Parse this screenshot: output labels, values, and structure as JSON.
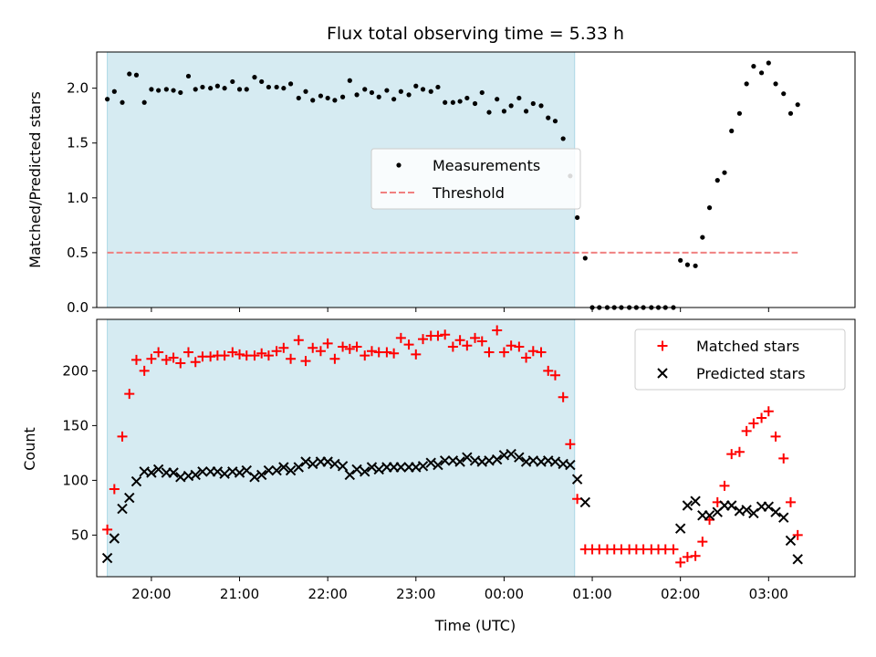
{
  "chart_data": [
    {
      "type": "scatter",
      "title": "Flux total observing time = 5.33 h",
      "ylabel": "Matched/Predicted stars",
      "xlabel": "",
      "xlim": [
        19.38,
        3.98
      ],
      "ylim": [
        0,
        2.33
      ],
      "xticks": [
        "20:00",
        "21:00",
        "22:00",
        "23:00",
        "00:00",
        "01:00",
        "02:00",
        "03:00"
      ],
      "yticks": [
        0.0,
        0.5,
        1.0,
        1.5,
        2.0
      ],
      "ytick_labels": [
        "0.0",
        "0.5",
        "1.0",
        "1.5",
        "2.0"
      ],
      "highlight_span": [
        19.5,
        0.8
      ],
      "highlight_color": "#add8e6",
      "legend": {
        "placement": "center-right",
        "entries": [
          "Measurements",
          "Threshold"
        ]
      },
      "threshold": {
        "name": "Threshold",
        "value": 0.5,
        "x_range": [
          19.5,
          3.33
        ],
        "color": "#f08080"
      },
      "series": [
        {
          "name": "Measurements",
          "marker": "dot",
          "color": "#000000",
          "x": [
            19.5,
            19.58,
            19.67,
            19.75,
            19.83,
            19.92,
            20.0,
            20.08,
            20.17,
            20.25,
            20.33,
            20.42,
            20.5,
            20.58,
            20.67,
            20.75,
            20.83,
            20.92,
            21.0,
            21.08,
            21.17,
            21.25,
            21.33,
            21.42,
            21.5,
            21.58,
            21.67,
            21.75,
            21.83,
            21.92,
            22.0,
            22.08,
            22.17,
            22.25,
            22.33,
            22.42,
            22.5,
            22.58,
            22.67,
            22.75,
            22.83,
            22.92,
            23.0,
            23.08,
            23.17,
            23.25,
            23.33,
            23.42,
            23.5,
            23.58,
            23.67,
            23.75,
            23.83,
            23.92,
            24.0,
            24.08,
            24.17,
            24.25,
            24.33,
            24.42,
            24.5,
            24.58,
            24.67,
            24.75,
            24.83,
            24.92,
            25.0,
            25.08,
            25.17,
            25.25,
            25.33,
            25.42,
            25.5,
            25.58,
            25.67,
            25.75,
            25.83,
            25.92,
            26.0,
            26.08,
            26.17,
            26.25,
            26.33,
            26.42,
            26.5,
            26.58,
            26.67,
            26.75,
            26.83,
            26.92,
            27.0,
            27.08,
            27.17,
            27.25,
            27.33
          ],
          "y": [
            1.9,
            1.97,
            1.87,
            2.13,
            2.12,
            1.87,
            1.99,
            1.98,
            1.99,
            1.98,
            1.96,
            2.11,
            1.99,
            2.01,
            2.0,
            2.02,
            2.0,
            2.06,
            1.99,
            1.99,
            2.1,
            2.06,
            2.01,
            2.01,
            2.0,
            2.04,
            1.91,
            1.97,
            1.89,
            1.93,
            1.91,
            1.89,
            1.92,
            2.07,
            1.94,
            1.99,
            1.96,
            1.92,
            1.98,
            1.9,
            1.97,
            1.94,
            2.02,
            1.99,
            1.97,
            2.01,
            1.87,
            1.87,
            1.88,
            1.91,
            1.86,
            1.96,
            1.78,
            1.9,
            1.79,
            1.84,
            1.91,
            1.79,
            1.86,
            1.84,
            1.73,
            1.7,
            1.54,
            1.2,
            0.82,
            0.45,
            0.0,
            0.0,
            0.0,
            0.0,
            0.0,
            0.0,
            0.0,
            0.0,
            0.0,
            0.0,
            0.0,
            0.0,
            0.43,
            0.39,
            0.38,
            0.64,
            0.91,
            1.16,
            1.23,
            1.61,
            1.77,
            2.04,
            2.2,
            2.14,
            2.23,
            2.04,
            1.95,
            1.77,
            1.85
          ]
        }
      ]
    },
    {
      "type": "scatter",
      "title": "",
      "ylabel": "Count",
      "xlabel": "Time (UTC)",
      "xlim": [
        19.38,
        3.98
      ],
      "ylim": [
        12,
        247
      ],
      "xticks": [
        "20:00",
        "21:00",
        "22:00",
        "23:00",
        "00:00",
        "01:00",
        "02:00",
        "03:00"
      ],
      "yticks": [
        50,
        100,
        150,
        200
      ],
      "ytick_labels": [
        "50",
        "100",
        "150",
        "200"
      ],
      "highlight_span": [
        19.5,
        0.8
      ],
      "highlight_color": "#add8e6",
      "legend": {
        "placement": "upper-right",
        "entries": [
          "Matched stars",
          "Predicted stars"
        ]
      },
      "series": [
        {
          "name": "Matched stars",
          "marker": "plus",
          "color": "#ff0000",
          "x": [
            19.5,
            19.58,
            19.67,
            19.75,
            19.83,
            19.92,
            20.0,
            20.08,
            20.17,
            20.25,
            20.33,
            20.42,
            20.5,
            20.58,
            20.67,
            20.75,
            20.83,
            20.92,
            21.0,
            21.08,
            21.17,
            21.25,
            21.33,
            21.42,
            21.5,
            21.58,
            21.67,
            21.75,
            21.83,
            21.92,
            22.0,
            22.08,
            22.17,
            22.25,
            22.33,
            22.42,
            22.5,
            22.58,
            22.67,
            22.75,
            22.83,
            22.92,
            23.0,
            23.08,
            23.17,
            23.25,
            23.33,
            23.42,
            23.5,
            23.58,
            23.67,
            23.75,
            23.83,
            23.92,
            24.0,
            24.08,
            24.17,
            24.25,
            24.33,
            24.42,
            24.5,
            24.58,
            24.67,
            24.75,
            24.83,
            24.92,
            25.0,
            25.08,
            25.17,
            25.25,
            25.33,
            25.42,
            25.5,
            25.58,
            25.67,
            25.75,
            25.83,
            25.92,
            26.0,
            26.08,
            26.17,
            26.25,
            26.33,
            26.42,
            26.5,
            26.58,
            26.67,
            26.75,
            26.83,
            26.92,
            27.0,
            27.08,
            27.17,
            27.25,
            27.33
          ],
          "y": [
            55,
            92,
            140,
            179,
            210,
            200,
            211,
            217,
            210,
            212,
            207,
            217,
            208,
            213,
            213,
            214,
            214,
            217,
            215,
            214,
            214,
            216,
            214,
            218,
            221,
            211,
            228,
            209,
            221,
            218,
            225,
            211,
            222,
            220,
            222,
            214,
            218,
            217,
            217,
            216,
            230,
            224,
            215,
            229,
            232,
            232,
            233,
            222,
            228,
            223,
            230,
            227,
            217,
            237,
            217,
            223,
            222,
            212,
            218,
            217,
            200,
            196,
            176,
            133,
            83,
            37,
            37,
            37,
            37,
            37,
            37,
            37,
            37,
            37,
            37,
            37,
            37,
            37,
            25,
            30,
            31,
            44,
            64,
            80,
            95,
            124,
            126,
            145,
            152,
            157,
            163,
            140,
            120,
            80,
            50
          ]
        },
        {
          "name": "Predicted stars",
          "marker": "x",
          "color": "#000000",
          "x": [
            19.5,
            19.58,
            19.67,
            19.75,
            19.83,
            19.92,
            20.0,
            20.08,
            20.17,
            20.25,
            20.33,
            20.42,
            20.5,
            20.58,
            20.67,
            20.75,
            20.83,
            20.92,
            21.0,
            21.08,
            21.17,
            21.25,
            21.33,
            21.42,
            21.5,
            21.58,
            21.67,
            21.75,
            21.83,
            21.92,
            22.0,
            22.08,
            22.17,
            22.25,
            22.33,
            22.42,
            22.5,
            22.58,
            22.67,
            22.75,
            22.83,
            22.92,
            23.0,
            23.08,
            23.17,
            23.25,
            23.33,
            23.42,
            23.5,
            23.58,
            23.67,
            23.75,
            23.83,
            23.92,
            24.0,
            24.08,
            24.17,
            24.25,
            24.33,
            24.42,
            24.5,
            24.58,
            24.67,
            24.75,
            24.83,
            24.92,
            26.0,
            26.08,
            26.17,
            26.25,
            26.33,
            26.42,
            26.5,
            26.58,
            26.67,
            26.75,
            26.83,
            26.92,
            27.0,
            27.08,
            27.17,
            27.25,
            27.33
          ],
          "y": [
            29,
            47,
            74,
            84,
            99,
            108,
            107,
            110,
            107,
            107,
            103,
            104,
            105,
            108,
            108,
            108,
            106,
            108,
            107,
            109,
            103,
            105,
            109,
            109,
            112,
            109,
            112,
            117,
            115,
            117,
            117,
            115,
            113,
            105,
            110,
            108,
            112,
            110,
            112,
            112,
            112,
            112,
            112,
            113,
            116,
            114,
            118,
            118,
            117,
            121,
            118,
            117,
            118,
            119,
            123,
            124,
            121,
            117,
            118,
            117,
            118,
            117,
            115,
            114,
            101,
            80,
            56,
            77,
            81,
            68,
            68,
            71,
            77,
            77,
            72,
            73,
            70,
            76,
            76,
            71,
            66,
            45,
            28
          ]
        }
      ]
    }
  ]
}
